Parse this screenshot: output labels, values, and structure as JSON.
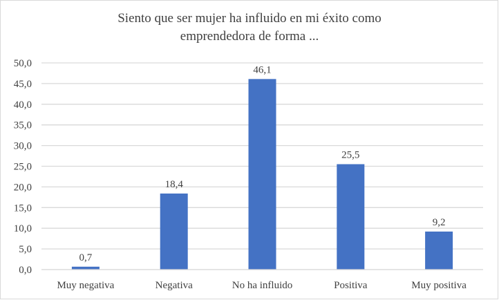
{
  "chart_data": {
    "type": "bar",
    "title_line1": "Siento que ser mujer ha influido en mi éxito como",
    "title_line2": "emprendedora de forma ...",
    "categories": [
      "Muy negativa",
      "Negativa",
      "No ha influido",
      "Positiva",
      "Muy positiva"
    ],
    "values": [
      0.7,
      18.4,
      46.1,
      25.5,
      9.2
    ],
    "value_labels": [
      "0,7",
      "18,4",
      "46,1",
      "25,5",
      "9,2"
    ],
    "ylim": [
      0,
      50
    ],
    "yticks": [
      "0,0",
      "5,0",
      "10,0",
      "15,0",
      "20,0",
      "25,0",
      "30,0",
      "35,0",
      "40,0",
      "45,0",
      "50,0"
    ],
    "xlabel": "",
    "ylabel": "",
    "grid": true,
    "bar_color": "#4472c4",
    "grid_color": "#d9d9d9"
  }
}
